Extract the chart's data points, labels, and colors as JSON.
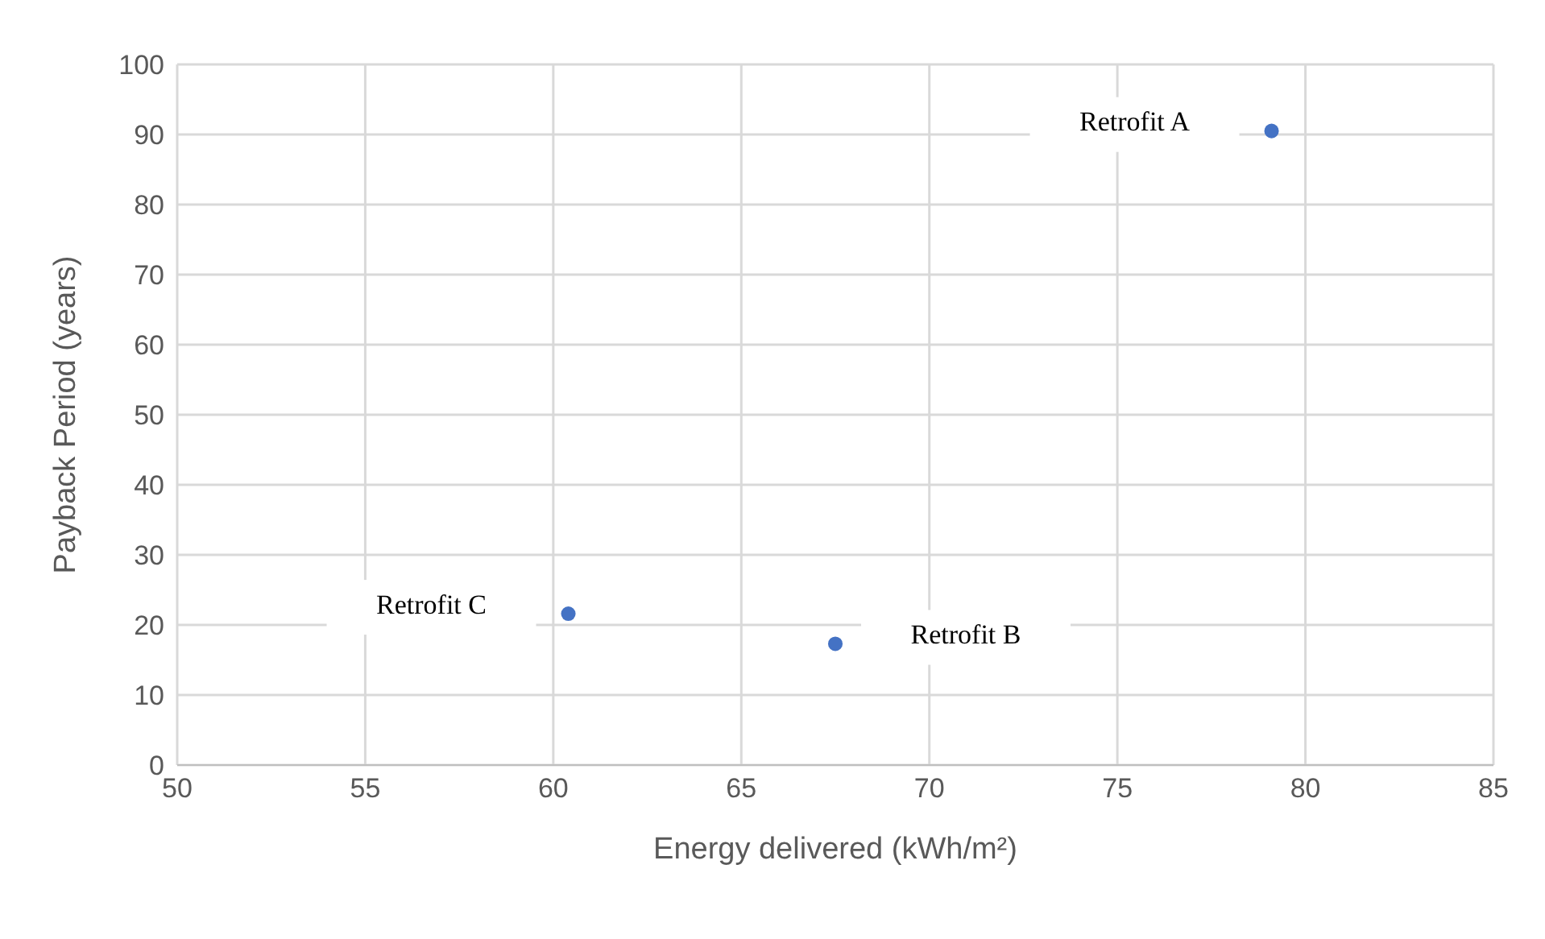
{
  "chart_data": {
    "type": "scatter",
    "xlabel": "Energy delivered (kWh/m²)",
    "ylabel": "Payback Period (years)",
    "x": [
      79.1,
      67.5,
      60.4
    ],
    "series": [
      {
        "color": "#4472c4",
        "values": [
          90.5,
          17.3,
          21.6
        ]
      }
    ],
    "xlim": [
      50,
      85
    ],
    "xticks": [
      50,
      55,
      60,
      65,
      70,
      75,
      80,
      85
    ],
    "ylim": [
      0,
      100
    ],
    "yticks": [
      0,
      10,
      20,
      30,
      40,
      50,
      60,
      70,
      80,
      90,
      100
    ],
    "grid": true,
    "legend": false,
    "marker": "circle",
    "annotations": [
      {
        "text": "Retrofit A",
        "x": 79.1,
        "y": 90.5
      },
      {
        "text": "Retrofit B",
        "x": 67.5,
        "y": 17.3
      },
      {
        "text": "Retrofit C",
        "x": 60.4,
        "y": 21.6
      }
    ]
  }
}
